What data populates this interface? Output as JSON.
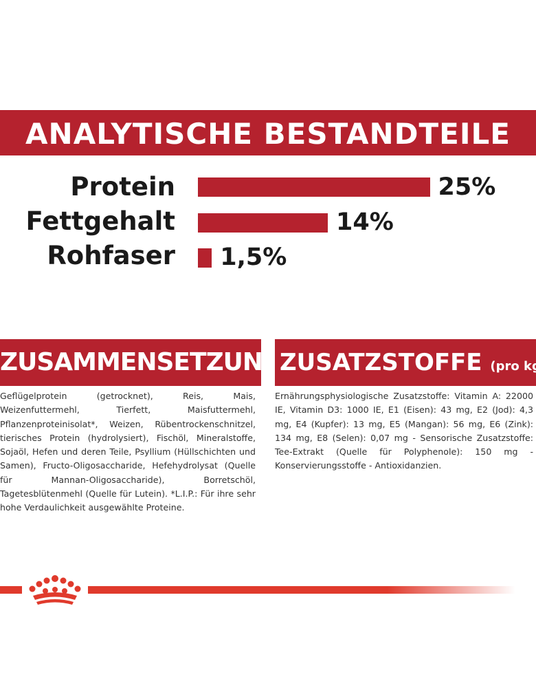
{
  "header": {
    "title": "ANALYTISCHE BESTANDTEILE"
  },
  "nutrients": [
    {
      "label": "Protein",
      "value": "25%",
      "percent": 25
    },
    {
      "label": "Fettgehalt",
      "value": "14%",
      "percent": 14
    },
    {
      "label": "Rohfaser",
      "value": "1,5%",
      "percent": 1.5
    }
  ],
  "composition": {
    "title": "ZUSAMMENSETZUNG",
    "text": "Geflügelprotein (getrocknet), Reis, Mais, Weizenfuttermehl, Tierfett, Maisfuttermehl, Pflanzenproteinisolat*, Weizen, Rübentrockenschnitzel, tierisches Protein (hydrolysiert), Fischöl, Mineralstoffe, Sojaöl, Hefen und deren Teile, Psyllium (Hüllschichten und Samen), Fructo-Oligosaccharide, Hefehydrolysat (Quelle für Mannan-Oligosaccharide), Borretschöl, Tagetesblütenmehl (Quelle für Lutein). *L.I.P.: Für ihre sehr hohe Verdaulichkeit ausgewählte Proteine."
  },
  "additives": {
    "title": "ZUSATZSTOFFE",
    "title_suffix": "(pro kg)",
    "text": "Ernährungsphysiologische Zusatzstoffe: Vitamin A: 22000 IE, Vitamin D3: 1000 IE, E1 (Eisen): 43 mg, E2 (Jod): 4,3 mg, E4 (Kupfer): 13 mg, E5 (Mangan): 56 mg, E6 (Zink): 134 mg, E8 (Selen): 0,07 mg - Sensorische Zusatzstoffe: Tee-Extrakt (Quelle für Polyphenole): 150 mg - Konservierungsstoffe - Antioxidanzien."
  },
  "brand": {
    "logo": "crown-logo-icon"
  },
  "colors": {
    "accent": "#b5222e",
    "footer_line": "#e03a2c",
    "text": "#333333"
  }
}
